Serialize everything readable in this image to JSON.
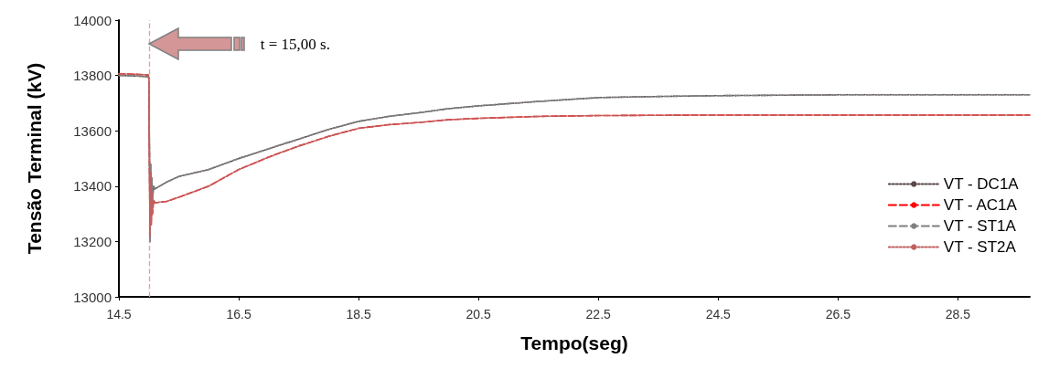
{
  "chart_data": {
    "type": "line",
    "xlabel": "Tempo(seg)",
    "ylabel": "Tensão Terminal (kV)",
    "x": [
      14.5,
      14.8,
      14.99,
      15.0,
      15.01,
      15.02,
      15.03,
      15.04,
      15.05,
      15.06,
      15.08,
      15.1,
      15.3,
      15.5,
      16.0,
      16.5,
      17.0,
      17.5,
      18.0,
      18.5,
      19.0,
      19.5,
      20.0,
      20.5,
      21.5,
      22.5,
      23.5,
      24.5,
      26.5,
      28.5,
      29.7
    ],
    "series": [
      {
        "name": "VT - DC1A",
        "color": "#5a4848",
        "line_style": "dotted",
        "values": [
          13800,
          13798,
          13795,
          13790,
          13530,
          13200,
          13480,
          13280,
          13430,
          13350,
          13400,
          13390,
          13415,
          13435,
          13460,
          13500,
          13535,
          13570,
          13605,
          13634,
          13652,
          13665,
          13680,
          13690,
          13706,
          13720,
          13724,
          13727,
          13730,
          13730,
          13730
        ]
      },
      {
        "name": "VT - AC1A",
        "color": "#ff0000",
        "line_style": "dashed",
        "values": [
          13806,
          13804,
          13802,
          13790,
          13480,
          13220,
          13450,
          13260,
          13380,
          13300,
          13350,
          13340,
          13345,
          13360,
          13400,
          13460,
          13505,
          13545,
          13580,
          13609,
          13622,
          13630,
          13640,
          13645,
          13652,
          13655,
          13656,
          13657,
          13657,
          13657,
          13657
        ]
      },
      {
        "name": "VT - ST1A",
        "color": "#808080",
        "line_style": "dashed",
        "values": [
          13800,
          13798,
          13795,
          13790,
          13530,
          13200,
          13480,
          13280,
          13430,
          13350,
          13400,
          13390,
          13415,
          13435,
          13460,
          13500,
          13535,
          13570,
          13605,
          13634,
          13652,
          13665,
          13680,
          13690,
          13706,
          13720,
          13724,
          13727,
          13730,
          13730,
          13730
        ]
      },
      {
        "name": "VT - ST2A",
        "color": "#c06060",
        "line_style": "dotted",
        "values": [
          13806,
          13804,
          13802,
          13790,
          13480,
          13220,
          13450,
          13260,
          13380,
          13300,
          13350,
          13340,
          13345,
          13360,
          13400,
          13460,
          13505,
          13545,
          13580,
          13609,
          13622,
          13630,
          13640,
          13645,
          13652,
          13655,
          13656,
          13657,
          13657,
          13657,
          13657
        ]
      }
    ],
    "xlim": [
      14.5,
      29.7
    ],
    "xticks": [
      14.5,
      16.5,
      18.5,
      20.5,
      22.5,
      24.5,
      26.5,
      28.5
    ],
    "ylim": [
      13000,
      14000
    ],
    "yticks": [
      13000,
      13200,
      13400,
      13600,
      13800,
      14000
    ],
    "ref_lines": [
      {
        "axis": "x",
        "value": 15,
        "color": "#e8a0a0",
        "line_style": "dashed"
      }
    ],
    "annotations": [
      "t = 15,00 s."
    ],
    "grid": false,
    "legend": "right",
    "marker": "none"
  }
}
